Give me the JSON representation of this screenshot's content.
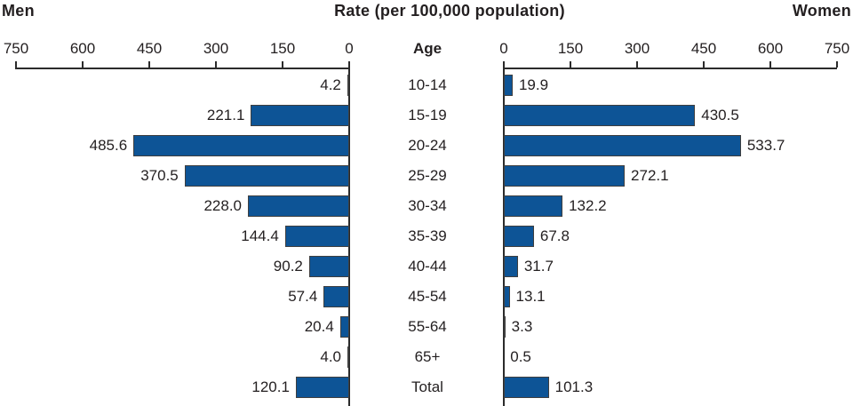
{
  "header": {
    "left": "Men",
    "title": "Rate (per 100,000 population)",
    "right": "Women",
    "age_column": "Age"
  },
  "chart_data": {
    "type": "bar",
    "layout": "population-pyramid-horizontal",
    "title": "Rate (per 100,000 population)",
    "left_series_label": "Men",
    "right_series_label": "Women",
    "center_axis_label": "Age",
    "axis_ticks": [
      0,
      150,
      300,
      450,
      600,
      750
    ],
    "xlim": [
      0,
      750
    ],
    "grid": false,
    "categories": [
      "10-14",
      "15-19",
      "20-24",
      "25-29",
      "30-34",
      "35-39",
      "40-44",
      "45-54",
      "55-64",
      "65+",
      "Total"
    ],
    "series": [
      {
        "name": "Men",
        "side": "left",
        "values": [
          4.2,
          221.1,
          485.6,
          370.5,
          228.0,
          144.4,
          90.2,
          57.4,
          20.4,
          4.0,
          120.1
        ],
        "labels": [
          "4.2",
          "221.1",
          "485.6",
          "370.5",
          "228.0",
          "144.4",
          "90.2",
          "57.4",
          "20.4",
          "4.0",
          "120.1"
        ]
      },
      {
        "name": "Women",
        "side": "right",
        "values": [
          19.9,
          430.5,
          533.7,
          272.1,
          132.2,
          67.8,
          31.7,
          13.1,
          3.3,
          0.5,
          101.3
        ],
        "labels": [
          "19.9",
          "430.5",
          "533.7",
          "272.1",
          "132.2",
          "67.8",
          "31.7",
          "13.1",
          "3.3",
          "0.5",
          "101.3"
        ]
      }
    ],
    "colors": {
      "bar_fill": "#0d5496",
      "bar_border": "#3f3f3f",
      "axis": "#2b2b2b",
      "text": "#231f20"
    }
  }
}
